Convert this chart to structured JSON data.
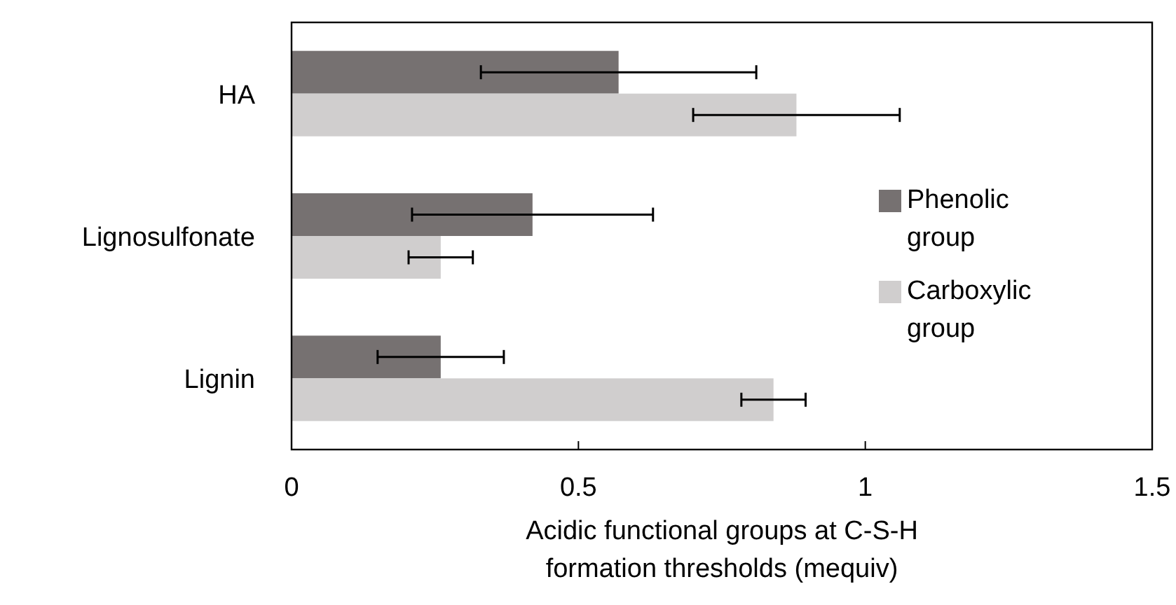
{
  "chart_data": {
    "type": "bar",
    "orientation": "horizontal",
    "xlabel": "Acidic functional groups at C-S-H formation thresholds (mequiv)",
    "categories": [
      "HA",
      "Lignosulfonate",
      "Lignin"
    ],
    "series": [
      {
        "name": "Phenolic group",
        "color": "#767171",
        "values": [
          0.57,
          0.42,
          0.26
        ],
        "errors": [
          0.24,
          0.21,
          0.11
        ]
      },
      {
        "name": "Carboxylic group",
        "color": "#d0cece",
        "values": [
          0.88,
          0.26,
          0.84
        ],
        "errors": [
          0.18,
          0.056,
          0.056
        ]
      }
    ],
    "xlim": [
      0,
      1.5
    ],
    "xticks": [
      0,
      0.5,
      1,
      1.5
    ],
    "grid": false,
    "legend": "right"
  }
}
